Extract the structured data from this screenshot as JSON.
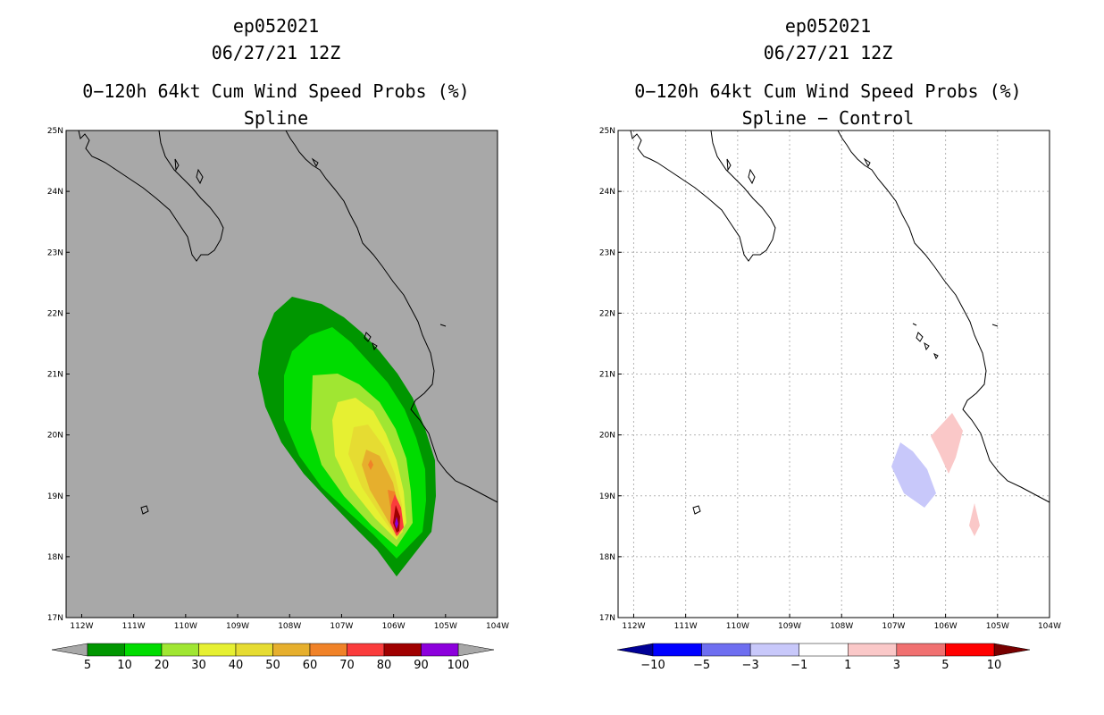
{
  "chart_data": [
    {
      "type": "contour-map",
      "storm_id": "ep052021",
      "datetime": "06/27/21 12Z",
      "title": "0−120h 64kt Cum Wind Speed Probs (%)",
      "subtitle": "Spline",
      "x_ticks": [
        "112W",
        "111W",
        "110W",
        "109W",
        "108W",
        "107W",
        "106W",
        "105W",
        "104W"
      ],
      "y_ticks": [
        "17N",
        "18N",
        "19N",
        "20N",
        "21N",
        "22N",
        "23N",
        "24N",
        "25N"
      ],
      "xlim": [
        -112.3,
        -104
      ],
      "ylim": [
        17,
        25
      ],
      "colorbar": {
        "labels": [
          "5",
          "10",
          "20",
          "30",
          "40",
          "50",
          "60",
          "70",
          "80",
          "90",
          "100"
        ],
        "colors": [
          "#009600",
          "#00dc00",
          "#a0e632",
          "#e6f032",
          "#e6dc32",
          "#e6af2d",
          "#f08228",
          "#fa3c3c",
          "#a00000",
          "#8c00dc"
        ],
        "low_color": "#a8a8a8",
        "high_color": "#a8a8a8"
      },
      "max_location": {
        "lon": -106.0,
        "lat": 18.55
      }
    },
    {
      "type": "contour-map",
      "storm_id": "ep052021",
      "datetime": "06/27/21 12Z",
      "title": "0−120h 64kt Cum Wind Speed Probs (%)",
      "subtitle": "Spline − Control",
      "x_ticks": [
        "112W",
        "111W",
        "110W",
        "109W",
        "108W",
        "107W",
        "106W",
        "105W",
        "104W"
      ],
      "y_ticks": [
        "17N",
        "18N",
        "19N",
        "20N",
        "21N",
        "22N",
        "23N",
        "24N",
        "25N"
      ],
      "xlim": [
        -112.3,
        -104
      ],
      "ylim": [
        17,
        25
      ],
      "colorbar": {
        "labels": [
          "−10",
          "−5",
          "−3",
          "−1",
          "1",
          "3",
          "5",
          "10"
        ],
        "colors": [
          "#0000ff",
          "#6e6ef0",
          "#c8c8fa",
          "#ffffff",
          "#fac8c8",
          "#f07070",
          "#ff0000"
        ],
        "low_color": "#000096",
        "high_color": "#780000"
      },
      "anomalies": [
        {
          "sign": "negative",
          "value_range": "−3 to −1",
          "center": {
            "lon": -106.8,
            "lat": 19.4
          }
        },
        {
          "sign": "positive",
          "value_range": "1 to 3",
          "center": {
            "lon": -106.0,
            "lat": 19.9
          }
        },
        {
          "sign": "positive",
          "value_range": "1 to 3",
          "center": {
            "lon": -105.5,
            "lat": 18.6
          }
        }
      ]
    }
  ]
}
